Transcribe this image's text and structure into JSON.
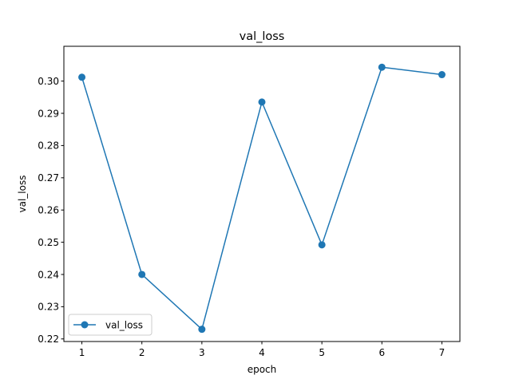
{
  "chart_data": {
    "type": "line",
    "title": "val_loss",
    "xlabel": "epoch",
    "ylabel": "val_loss",
    "x": [
      1,
      2,
      3,
      4,
      5,
      6,
      7
    ],
    "xlim": [
      0.7,
      7.3
    ],
    "ylim": [
      0.2192,
      0.3108
    ],
    "xticks": [
      "1",
      "2",
      "3",
      "4",
      "5",
      "6",
      "7"
    ],
    "yticks": [
      {
        "value": 0.22,
        "label": "0.22"
      },
      {
        "value": 0.23,
        "label": "0.23"
      },
      {
        "value": 0.24,
        "label": "0.24"
      },
      {
        "value": 0.25,
        "label": "0.25"
      },
      {
        "value": 0.26,
        "label": "0.26"
      },
      {
        "value": 0.27,
        "label": "0.27"
      },
      {
        "value": 0.28,
        "label": "0.28"
      },
      {
        "value": 0.29,
        "label": "0.29"
      },
      {
        "value": 0.3,
        "label": "0.30"
      }
    ],
    "grid": false,
    "legend_position": "lower-left",
    "series": [
      {
        "name": "val_loss",
        "color": "#1f77b4",
        "marker": "circle",
        "values": [
          0.3012,
          0.24,
          0.223,
          0.2935,
          0.2492,
          0.3043,
          0.302
        ]
      }
    ]
  }
}
